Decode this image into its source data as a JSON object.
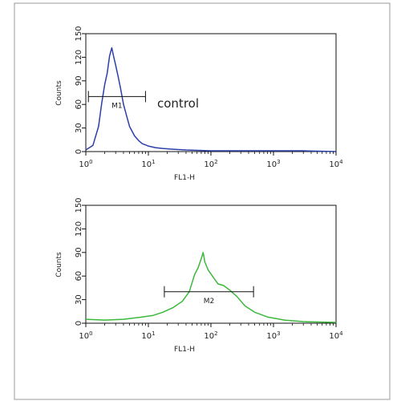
{
  "chart_data": [
    {
      "type": "line",
      "xscale": "log",
      "xlim": [
        1,
        10000
      ],
      "ylim": [
        0,
        150
      ],
      "xlabel": "FL1-H",
      "ylabel": "Counts",
      "xticks": [
        {
          "base": "10",
          "exp": "0"
        },
        {
          "base": "10",
          "exp": "1"
        },
        {
          "base": "10",
          "exp": "2"
        },
        {
          "base": "10",
          "exp": "3"
        },
        {
          "base": "10",
          "exp": "4"
        }
      ],
      "yticks": [
        "0",
        "30",
        "60",
        "90",
        "120",
        "150"
      ],
      "series": [
        {
          "color": "#2b3fa8",
          "x": [
            1,
            1.3,
            1.6,
            1.8,
            2.0,
            2.2,
            2.4,
            2.6,
            2.8,
            3.0,
            3.3,
            3.6,
            4.0,
            4.5,
            5.0,
            6.0,
            7.0,
            8.0,
            10,
            13,
            17,
            25,
            40,
            100,
            300,
            1000,
            3000,
            10000
          ],
          "y": [
            2,
            8,
            32,
            62,
            85,
            100,
            122,
            132,
            120,
            110,
            95,
            80,
            60,
            45,
            32,
            20,
            14,
            10,
            7,
            5,
            4,
            3,
            2,
            1,
            1,
            1,
            1,
            0
          ]
        }
      ],
      "annotations": [
        {
          "text": "control"
        },
        {
          "text": "M1",
          "gate": [
            1.1,
            9.0
          ],
          "gate_y": 70
        }
      ]
    },
    {
      "type": "line",
      "xscale": "log",
      "xlim": [
        1,
        10000
      ],
      "ylim": [
        0,
        150
      ],
      "xlabel": "FL1-H",
      "ylabel": "Counts",
      "xticks": [
        {
          "base": "10",
          "exp": "0"
        },
        {
          "base": "10",
          "exp": "1"
        },
        {
          "base": "10",
          "exp": "2"
        },
        {
          "base": "10",
          "exp": "3"
        },
        {
          "base": "10",
          "exp": "4"
        }
      ],
      "yticks": [
        "0",
        "30",
        "60",
        "90",
        "120",
        "150"
      ],
      "series": [
        {
          "color": "#3cb83c",
          "x": [
            1,
            2,
            4,
            8,
            12,
            17,
            25,
            35,
            45,
            55,
            62,
            70,
            75,
            80,
            90,
            110,
            130,
            160,
            200,
            260,
            350,
            500,
            800,
            1500,
            3000,
            10000
          ],
          "y": [
            5,
            4,
            5,
            8,
            10,
            14,
            20,
            28,
            40,
            62,
            70,
            82,
            90,
            78,
            68,
            58,
            50,
            48,
            42,
            34,
            22,
            14,
            8,
            4,
            2,
            1
          ]
        }
      ],
      "annotations": [
        {
          "text": "M2",
          "gate": [
            18,
            480
          ],
          "gate_y": 40
        }
      ]
    }
  ]
}
